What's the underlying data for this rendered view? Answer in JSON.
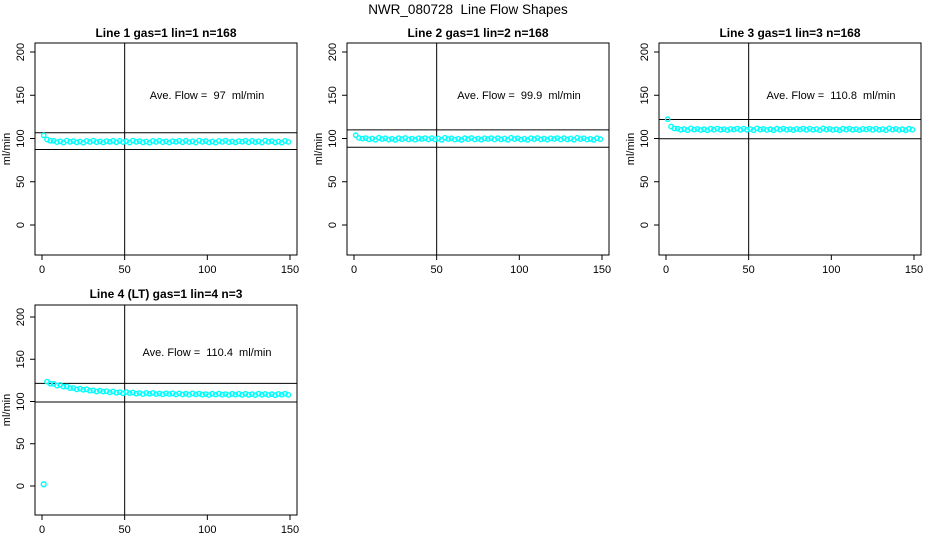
{
  "figure_title": "NWR_080728  Line Flow Shapes",
  "colors": {
    "point_color": "#00FFFF",
    "axis_color": "#000000",
    "background": "#FFFFFF"
  },
  "chart_data": [
    {
      "type": "scatter",
      "title": "Line 1 gas=1 lin=1 n=168",
      "annotation": "Ave. Flow =  97  ml/min",
      "ave_flow_ml_min": 97,
      "n_points": 168,
      "xlabel": "",
      "ylabel": "ml/min",
      "xlim": [
        0,
        150
      ],
      "ylim": [
        0,
        200
      ],
      "x_ticks": [
        0,
        50,
        100,
        150
      ],
      "y_ticks": [
        0,
        50,
        100,
        150,
        200
      ],
      "vline_x": 50,
      "hlines": [
        106.7,
        87.3
      ],
      "grid": false,
      "series": {
        "x0": 1,
        "dx": 2,
        "y": [
          103.6,
          98.9,
          97.3,
          97.3,
          95.8,
          96.8,
          95.3,
          97.6,
          96.1,
          97.0,
          95.5,
          96.5,
          95.2,
          97.2,
          96.0,
          97.4,
          95.7,
          96.7,
          95.4,
          97.0,
          96.2,
          97.3,
          95.6,
          97.3,
          95.8,
          96.8,
          95.3,
          97.6,
          96.1,
          97.0,
          95.5,
          96.5,
          95.2,
          97.2,
          96.0,
          97.4,
          95.7,
          96.7,
          95.4,
          97.0,
          96.2,
          97.3,
          95.6,
          97.3,
          95.8,
          96.8,
          95.3,
          97.6,
          96.1,
          97.0,
          95.5,
          96.5,
          95.2,
          97.2,
          96.0,
          97.4,
          95.7,
          96.7,
          95.4,
          97.0,
          96.2,
          97.3,
          95.6,
          97.3,
          95.8,
          96.8,
          95.3,
          97.6,
          96.1,
          97.0,
          95.5,
          96.5,
          95.2,
          97.2,
          96.0
        ]
      },
      "outlier_points": []
    },
    {
      "type": "scatter",
      "title": "Line 2 gas=1 lin=2 n=168",
      "annotation": "Ave. Flow =  99.9  ml/min",
      "ave_flow_ml_min": 99.9,
      "n_points": 168,
      "xlabel": "",
      "ylabel": "ml/min",
      "xlim": [
        0,
        150
      ],
      "ylim": [
        0,
        200
      ],
      "x_ticks": [
        0,
        50,
        100,
        150
      ],
      "y_ticks": [
        0,
        50,
        100,
        150,
        200
      ],
      "vline_x": 50,
      "hlines": [
        109.9,
        89.9
      ],
      "grid": false,
      "series": {
        "x0": 1,
        "dx": 2,
        "y": [
          103.8,
          100.6,
          99.9,
          100.5,
          99.0,
          100.0,
          98.5,
          100.8,
          99.3,
          100.2,
          98.7,
          99.7,
          98.4,
          100.4,
          99.2,
          100.6,
          98.9,
          99.9,
          98.6,
          100.2,
          99.4,
          100.5,
          98.8,
          100.5,
          99.0,
          100.0,
          98.5,
          100.8,
          99.3,
          100.2,
          98.7,
          99.7,
          98.4,
          100.4,
          99.2,
          100.6,
          98.9,
          99.9,
          98.6,
          100.2,
          99.4,
          100.5,
          98.8,
          100.5,
          99.0,
          100.0,
          98.5,
          100.8,
          99.3,
          100.2,
          98.7,
          99.7,
          98.4,
          100.4,
          99.2,
          100.6,
          98.9,
          99.9,
          98.6,
          100.2,
          99.4,
          100.5,
          98.8,
          100.5,
          99.0,
          100.0,
          98.5,
          100.8,
          99.3,
          100.2,
          98.7,
          99.7,
          98.4,
          100.4,
          99.2
        ]
      },
      "outlier_points": []
    },
    {
      "type": "scatter",
      "title": "Line 3 gas=1 lin=3 n=168",
      "annotation": "Ave. Flow =  110.8  ml/min",
      "ave_flow_ml_min": 110.8,
      "n_points": 168,
      "xlabel": "",
      "ylabel": "ml/min",
      "xlim": [
        0,
        150
      ],
      "ylim": [
        0,
        200
      ],
      "x_ticks": [
        0,
        50,
        100,
        150
      ],
      "y_ticks": [
        0,
        50,
        100,
        150,
        200
      ],
      "vline_x": 50,
      "hlines": [
        121.9,
        99.7
      ],
      "grid": false,
      "series": {
        "x0": 1,
        "dx": 2,
        "y": [
          122.3,
          113.9,
          111.6,
          111.4,
          110.1,
          111.0,
          109.6,
          111.7,
          110.3,
          111.1,
          109.8,
          110.7,
          109.5,
          111.3,
          110.2,
          111.5,
          110.0,
          110.9,
          109.7,
          111.1,
          110.4,
          111.4,
          109.9,
          111.4,
          110.1,
          111.0,
          109.6,
          111.7,
          110.3,
          111.1,
          109.8,
          110.7,
          109.5,
          111.3,
          110.2,
          111.5,
          110.0,
          110.9,
          109.7,
          111.1,
          110.4,
          111.4,
          109.9,
          111.4,
          110.1,
          111.0,
          109.6,
          111.7,
          110.3,
          111.1,
          109.8,
          110.7,
          109.5,
          111.3,
          110.2,
          111.5,
          110.0,
          110.9,
          109.7,
          111.1,
          110.4,
          111.4,
          109.9,
          111.4,
          110.1,
          111.0,
          109.6,
          111.7,
          110.3,
          111.1,
          109.8,
          110.7,
          109.5,
          111.3,
          110.2
        ]
      },
      "outlier_points": []
    },
    {
      "type": "scatter",
      "title": "Line 4 (LT) gas=1 lin=4 n=3",
      "annotation": "Ave. Flow =  110.4  ml/min",
      "ave_flow_ml_min": 110.4,
      "n_points": 3,
      "xlabel": "",
      "ylabel": "ml/min",
      "xlim": [
        0,
        150
      ],
      "ylim": [
        0,
        200
      ],
      "x_ticks": [
        0,
        50,
        100,
        150
      ],
      "y_ticks": [
        0,
        50,
        100,
        150,
        200
      ],
      "vline_x": 50,
      "hlines": [
        121.4,
        99.4
      ],
      "grid": false,
      "series": {
        "x0": 3,
        "dx": 2,
        "y": [
          123.5,
          121.1,
          121.0,
          118.8,
          119.6,
          117.6,
          117.7,
          115.7,
          116.0,
          114.3,
          115.3,
          113.8,
          114.5,
          112.8,
          113.1,
          111.7,
          112.8,
          111.7,
          112.3,
          110.8,
          111.8,
          110.3,
          111.1,
          109.7,
          111.3,
          109.9,
          110.7,
          109.2,
          110.0,
          108.8,
          110.2,
          109.1,
          110.2,
          108.8,
          109.5,
          108.4,
          109.7,
          108.9,
          109.7,
          108.3,
          109.6,
          108.3,
          109.2,
          108.0,
          109.7,
          108.4,
          109.3,
          108.0,
          108.8,
          107.7,
          109.2,
          108.2,
          109.3,
          108.0,
          108.7,
          107.7,
          109.1,
          108.2,
          109.1,
          107.8,
          109.1,
          107.8,
          108.8,
          107.6,
          109.3,
          108.1,
          109.0,
          107.7,
          108.6,
          107.5,
          109.0,
          108.0,
          109.2,
          107.9
        ]
      },
      "outlier_points": [
        [
          1,
          2
        ]
      ]
    }
  ]
}
